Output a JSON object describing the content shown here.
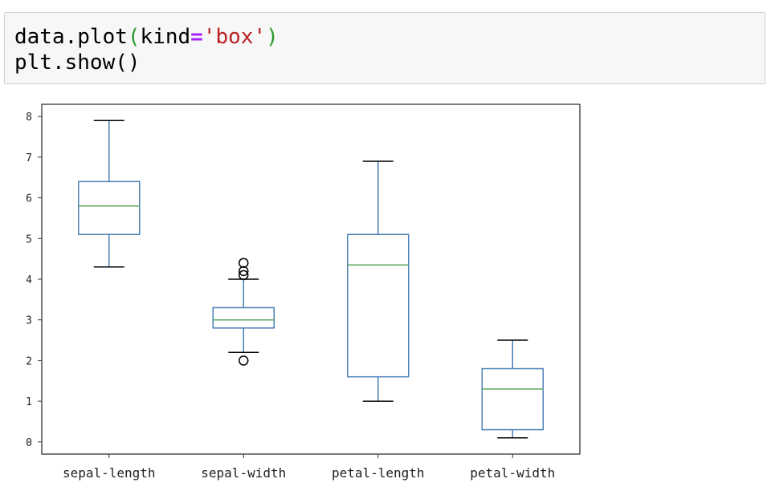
{
  "code_cell": {
    "line1_prefix": "data.plot",
    "line1_open": "(",
    "line1_arg": "kind",
    "line1_eq": "=",
    "line1_str": "'box'",
    "line1_close": ")",
    "line2": "plt.show()"
  },
  "colors": {
    "box": "#4a7fb5",
    "median": "#5aa85a",
    "whisker": "#4a7fb5",
    "cap": "#000000",
    "flier": "#000000",
    "axes": "#333333",
    "code_bg": "#f7f7f7",
    "code_border": "#cfcfcf"
  },
  "chart_data": {
    "type": "box",
    "title": "",
    "xlabel": "",
    "ylabel": "",
    "ylim": [
      -0.3,
      8.3
    ],
    "yticks": [
      0,
      1,
      2,
      3,
      4,
      5,
      6,
      7,
      8
    ],
    "grid": false,
    "categories": [
      "sepal-length",
      "sepal-width",
      "petal-length",
      "petal-width"
    ],
    "boxes": [
      {
        "category": "sepal-length",
        "whisker_low": 4.3,
        "q1": 5.1,
        "median": 5.8,
        "q3": 6.4,
        "whisker_high": 7.9,
        "fliers": []
      },
      {
        "category": "sepal-width",
        "whisker_low": 2.2,
        "q1": 2.8,
        "median": 3.0,
        "q3": 3.3,
        "whisker_high": 4.0,
        "fliers": [
          4.4,
          4.2,
          4.1,
          2.0
        ]
      },
      {
        "category": "petal-length",
        "whisker_low": 1.0,
        "q1": 1.6,
        "median": 4.35,
        "q3": 5.1,
        "whisker_high": 6.9,
        "fliers": []
      },
      {
        "category": "petal-width",
        "whisker_low": 0.1,
        "q1": 0.3,
        "median": 1.3,
        "q3": 1.8,
        "whisker_high": 2.5,
        "fliers": []
      }
    ]
  }
}
